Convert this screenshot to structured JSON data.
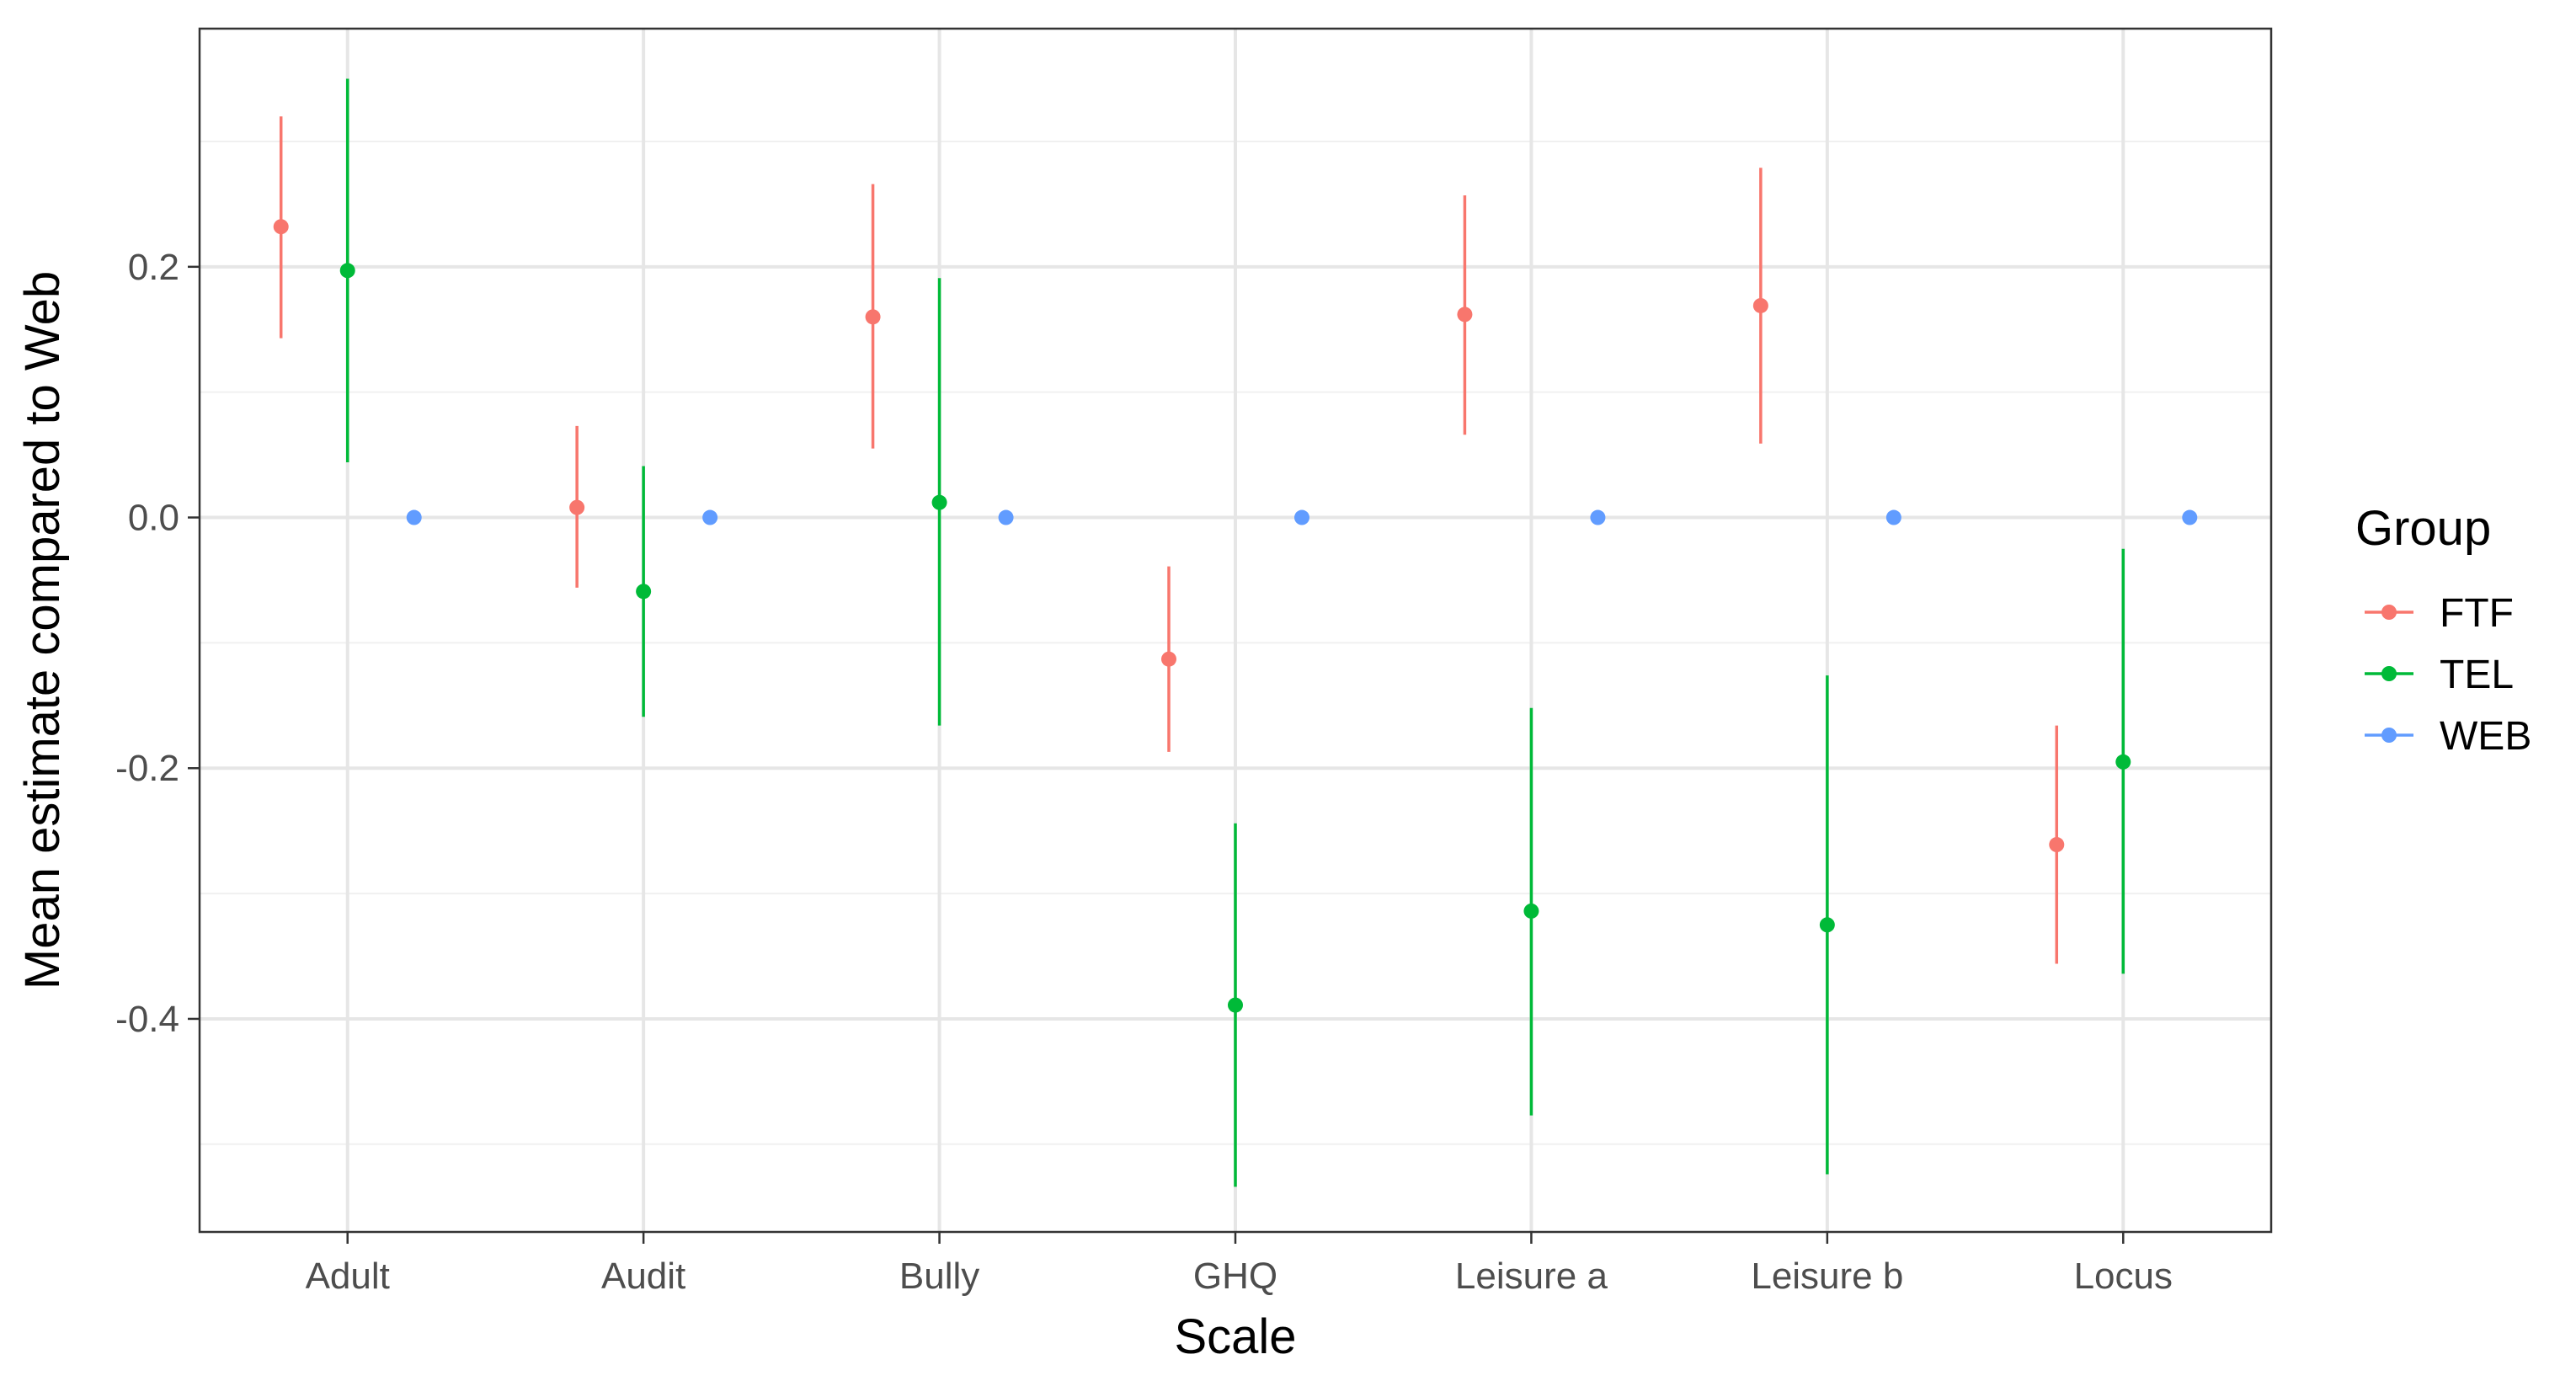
{
  "chart_data": {
    "type": "scatter",
    "subtype": "pointrange",
    "xlabel": "Scale",
    "ylabel": "Mean estimate compared to Web",
    "categories": [
      "Adult",
      "Audit",
      "Bully",
      "GHQ",
      "Leisure a",
      "Leisure b",
      "Locus"
    ],
    "ylim": [
      -0.57,
      0.39
    ],
    "yticks": [
      -0.4,
      -0.2,
      0.0,
      0.2
    ],
    "ytick_labels": [
      "-0.4",
      "-0.2",
      "0.0",
      "0.2"
    ],
    "grid": true,
    "legend": {
      "title": "Group",
      "position": "right"
    },
    "series": [
      {
        "name": "FTF",
        "color": "#F8766D",
        "values": [
          0.232,
          0.008,
          0.16,
          -0.113,
          0.162,
          0.169,
          -0.261
        ],
        "lower": [
          0.143,
          -0.056,
          0.055,
          -0.187,
          0.066,
          0.059,
          -0.356
        ],
        "upper": [
          0.32,
          0.073,
          0.266,
          -0.039,
          0.257,
          0.279,
          -0.166
        ]
      },
      {
        "name": "TEL",
        "color": "#00BA38",
        "values": [
          0.197,
          -0.059,
          0.012,
          -0.389,
          -0.314,
          -0.325,
          -0.195
        ],
        "lower": [
          0.044,
          -0.159,
          -0.166,
          -0.534,
          -0.477,
          -0.524,
          -0.364
        ],
        "upper": [
          0.35,
          0.041,
          0.191,
          -0.244,
          -0.152,
          -0.126,
          -0.025
        ]
      },
      {
        "name": "WEB",
        "color": "#619CFF",
        "values": [
          0,
          0,
          0,
          0,
          0,
          0,
          0
        ],
        "lower": [
          0,
          0,
          0,
          0,
          0,
          0,
          0
        ],
        "upper": [
          0,
          0,
          0,
          0,
          0,
          0,
          0
        ]
      }
    ]
  }
}
